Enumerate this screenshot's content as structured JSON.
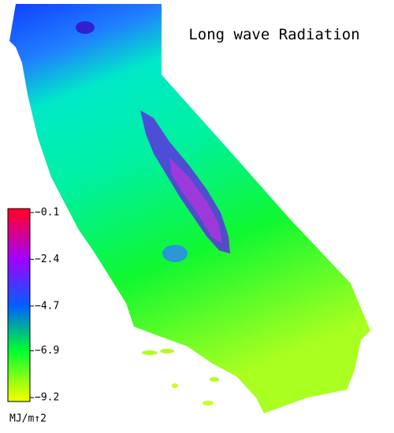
{
  "title": "Long wave Radiation",
  "colorbar": {
    "range": [
      -9.2,
      -0.1
    ],
    "ticks": [
      {
        "value": -0.1,
        "label": "−0.1"
      },
      {
        "value": -2.4,
        "label": "−2.4"
      },
      {
        "value": -4.7,
        "label": "−4.7"
      },
      {
        "value": -6.9,
        "label": "−6.9"
      },
      {
        "value": -9.2,
        "label": "−9.2"
      }
    ],
    "colors": [
      "#ff0030",
      "#a000ff",
      "#0060ff",
      "#00ff30",
      "#e8ff00"
    ],
    "unit_label": "MJ/m↑2"
  }
}
